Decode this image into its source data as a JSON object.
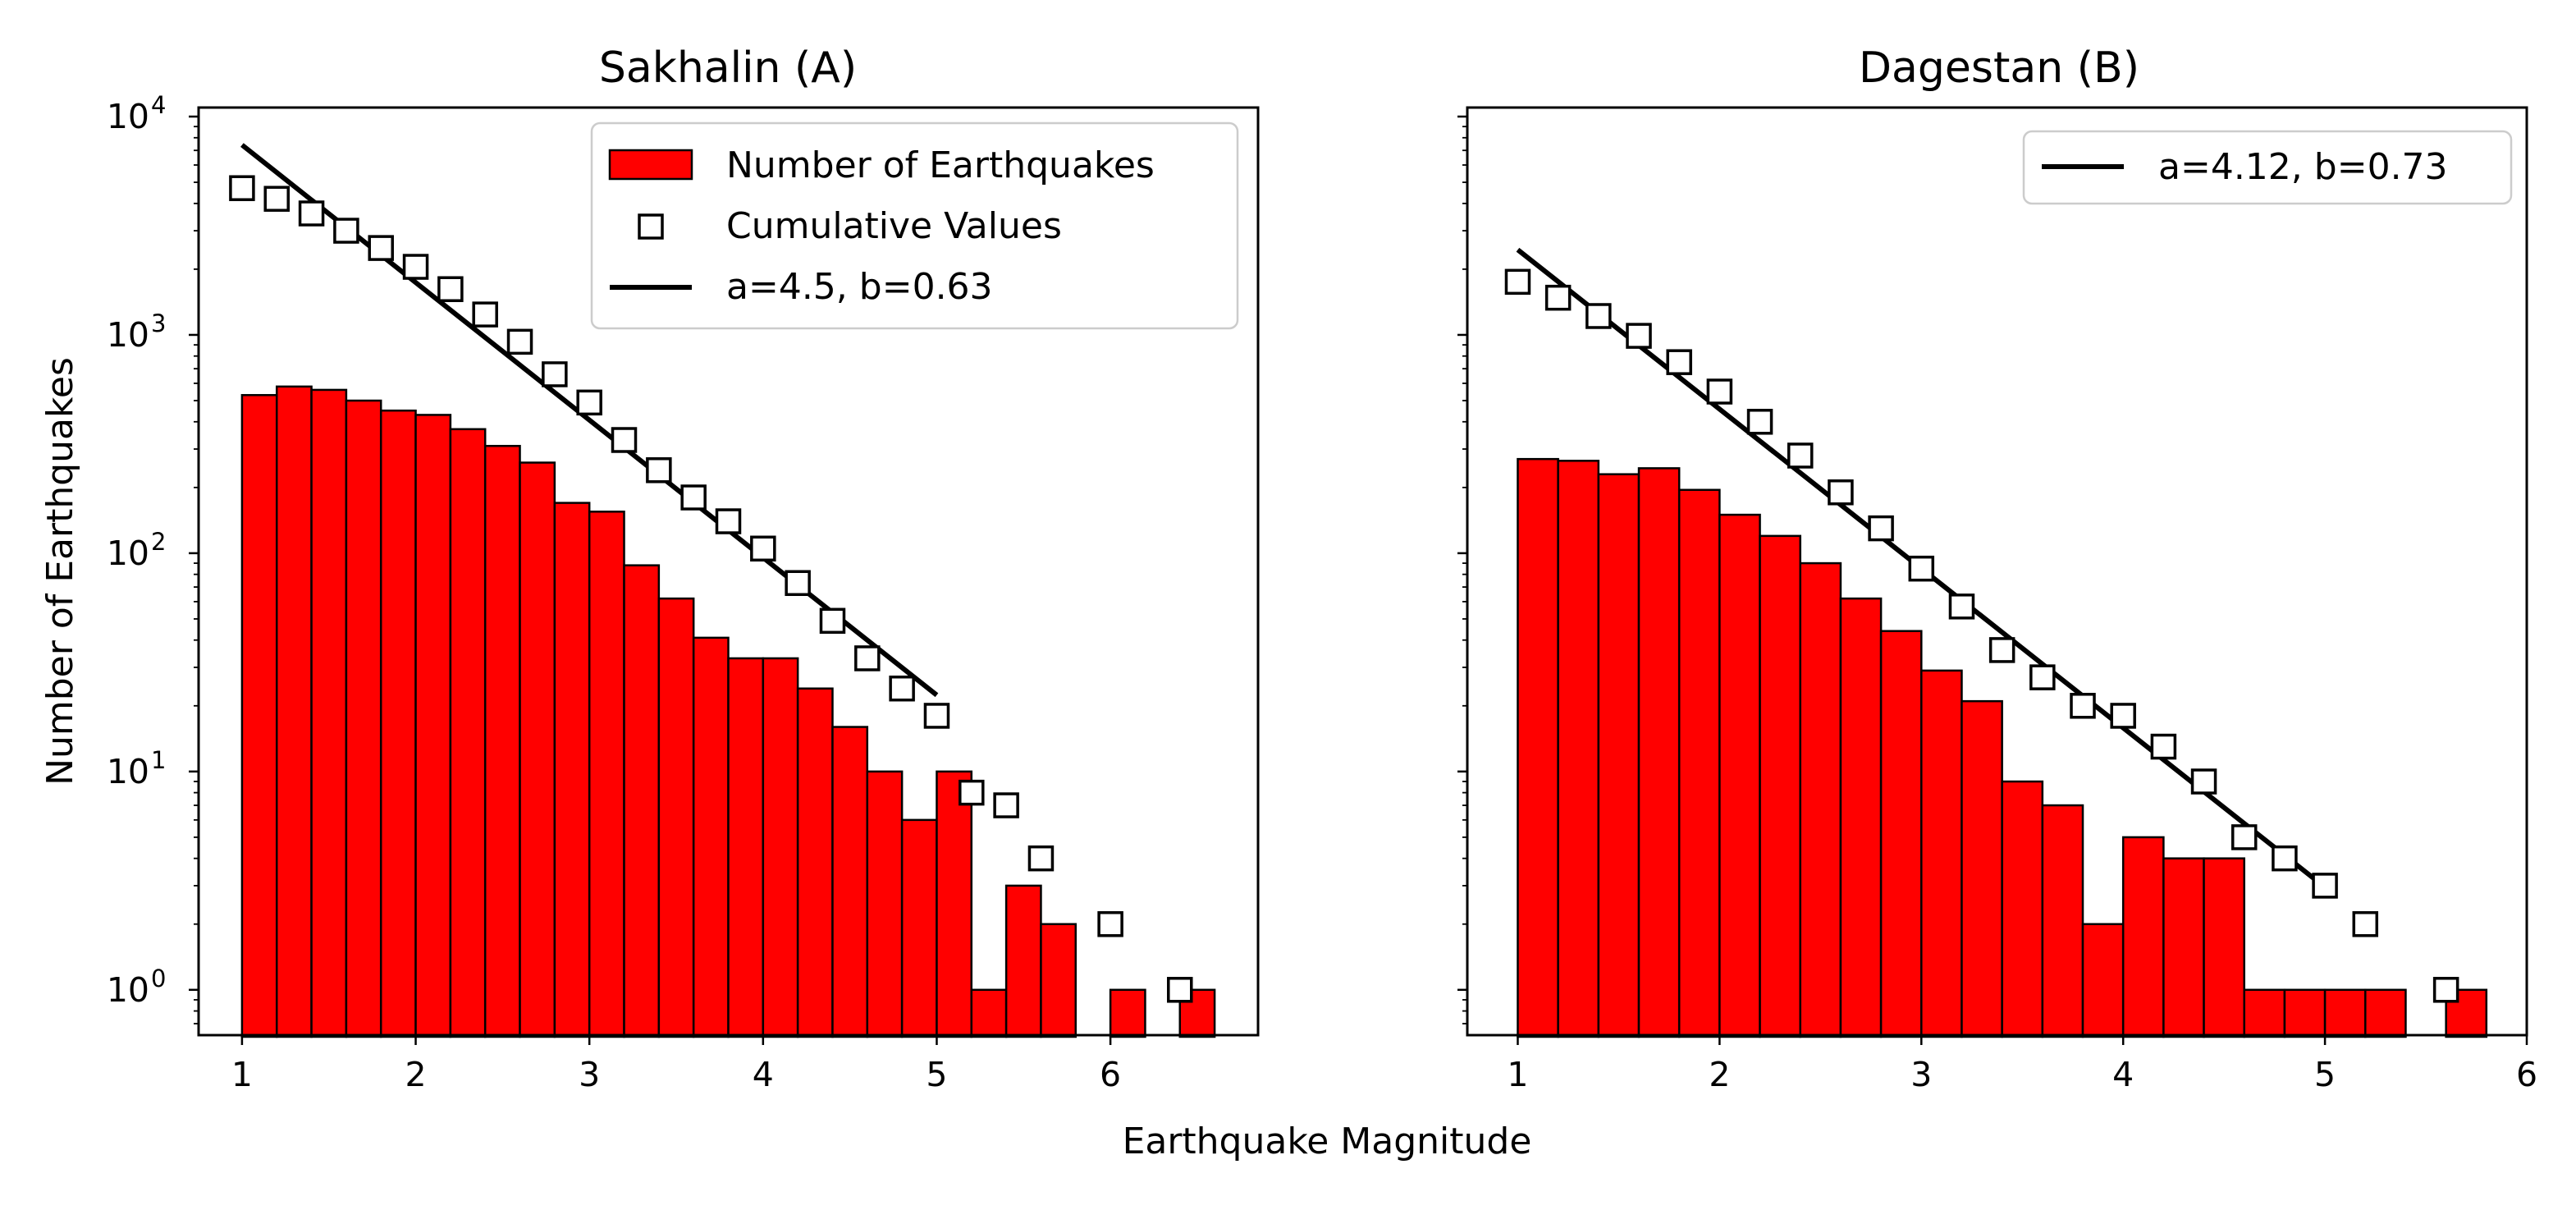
{
  "figure": {
    "xlabel": "Earthquake Magnitude",
    "ylabel": "Number of Earthquakes"
  },
  "chart_data": [
    {
      "type": "bar",
      "title": "Sakhalin (A)",
      "xlabel": "Earthquake Magnitude",
      "ylabel": "Number of Earthquakes",
      "yscale": "log",
      "xlim": [
        0.75,
        6.85
      ],
      "ylim": [
        0.62,
        11000
      ],
      "x_ticks": [
        1,
        2,
        3,
        4,
        5,
        6
      ],
      "y_ticks": [
        1,
        10,
        100,
        1000,
        10000
      ],
      "y_tick_labels": [
        {
          "base": "10",
          "exp": "0"
        },
        {
          "base": "10",
          "exp": "1"
        },
        {
          "base": "10",
          "exp": "2"
        },
        {
          "base": "10",
          "exp": "3"
        },
        {
          "base": "10",
          "exp": "4"
        }
      ],
      "bin_width": 0.2,
      "histogram": {
        "name": "Number of Earthquakes",
        "color": "#ff0000",
        "bin_starts": [
          1.0,
          1.2,
          1.4,
          1.6,
          1.8,
          2.0,
          2.2,
          2.4,
          2.6,
          2.8,
          3.0,
          3.2,
          3.4,
          3.6,
          3.8,
          4.0,
          4.2,
          4.4,
          4.6,
          4.8,
          5.0,
          5.2,
          5.4,
          5.6,
          5.8,
          6.0,
          6.2,
          6.4
        ],
        "values": [
          530,
          580,
          560,
          500,
          450,
          430,
          370,
          310,
          260,
          170,
          155,
          88,
          62,
          41,
          33,
          33,
          24,
          16,
          10,
          6,
          10,
          1,
          3,
          2,
          0,
          1,
          0,
          1
        ]
      },
      "cumulative": {
        "name": "Cumulative Values",
        "x": [
          1.0,
          1.2,
          1.4,
          1.6,
          1.8,
          2.0,
          2.2,
          2.4,
          2.6,
          2.8,
          3.0,
          3.2,
          3.4,
          3.6,
          3.8,
          4.0,
          4.2,
          4.4,
          4.6,
          4.8,
          5.0,
          5.2,
          5.4,
          5.6,
          6.0,
          6.4
        ],
        "y": [
          4700,
          4200,
          3600,
          3000,
          2500,
          2050,
          1620,
          1240,
          930,
          660,
          490,
          330,
          240,
          180,
          140,
          105,
          73,
          49,
          33,
          24,
          18,
          8,
          7,
          4,
          2,
          1
        ]
      },
      "fit": {
        "name": "a=4.5, b=0.63",
        "a": 4.5,
        "b": 0.63,
        "x_range": [
          1.0,
          5.0
        ]
      },
      "legend": {
        "location": "upper-right",
        "entries": [
          "Number of Earthquakes",
          "Cumulative Values",
          "a=4.5, b=0.63"
        ]
      }
    },
    {
      "type": "bar",
      "title": "Dagestan (B)",
      "xlabel": "Earthquake Magnitude",
      "ylabel": "Number of Earthquakes",
      "yscale": "log",
      "xlim": [
        0.75,
        6.0
      ],
      "ylim": [
        0.62,
        11000
      ],
      "x_ticks": [
        1,
        2,
        3,
        4,
        5,
        6
      ],
      "y_ticks": [
        1,
        10,
        100,
        1000,
        10000
      ],
      "bin_width": 0.2,
      "histogram": {
        "name": "Number of Earthquakes",
        "color": "#ff0000",
        "bin_starts": [
          1.0,
          1.2,
          1.4,
          1.6,
          1.8,
          2.0,
          2.2,
          2.4,
          2.6,
          2.8,
          3.0,
          3.2,
          3.4,
          3.6,
          3.8,
          4.0,
          4.2,
          4.4,
          4.6,
          4.8,
          5.0,
          5.2,
          5.4,
          5.6
        ],
        "values": [
          270,
          265,
          230,
          245,
          195,
          150,
          120,
          90,
          62,
          44,
          29,
          21,
          9,
          7,
          2,
          5,
          4,
          4,
          1,
          1,
          1,
          1,
          0,
          1
        ]
      },
      "cumulative": {
        "name": "Cumulative Values",
        "x": [
          1.0,
          1.2,
          1.4,
          1.6,
          1.8,
          2.0,
          2.2,
          2.4,
          2.6,
          2.8,
          3.0,
          3.2,
          3.4,
          3.6,
          3.8,
          4.0,
          4.2,
          4.4,
          4.6,
          4.8,
          5.0,
          5.2,
          5.6
        ],
        "y": [
          1750,
          1480,
          1220,
          990,
          750,
          550,
          400,
          280,
          190,
          130,
          85,
          57,
          36,
          27,
          20,
          18,
          13,
          9,
          5,
          4,
          3,
          2,
          1
        ]
      },
      "fit": {
        "name": "a=4.12, b=0.73",
        "a": 4.12,
        "b": 0.73,
        "x_range": [
          1.0,
          5.0
        ]
      },
      "legend": {
        "location": "upper-right",
        "entries": [
          "a=4.12, b=0.73"
        ]
      }
    }
  ]
}
